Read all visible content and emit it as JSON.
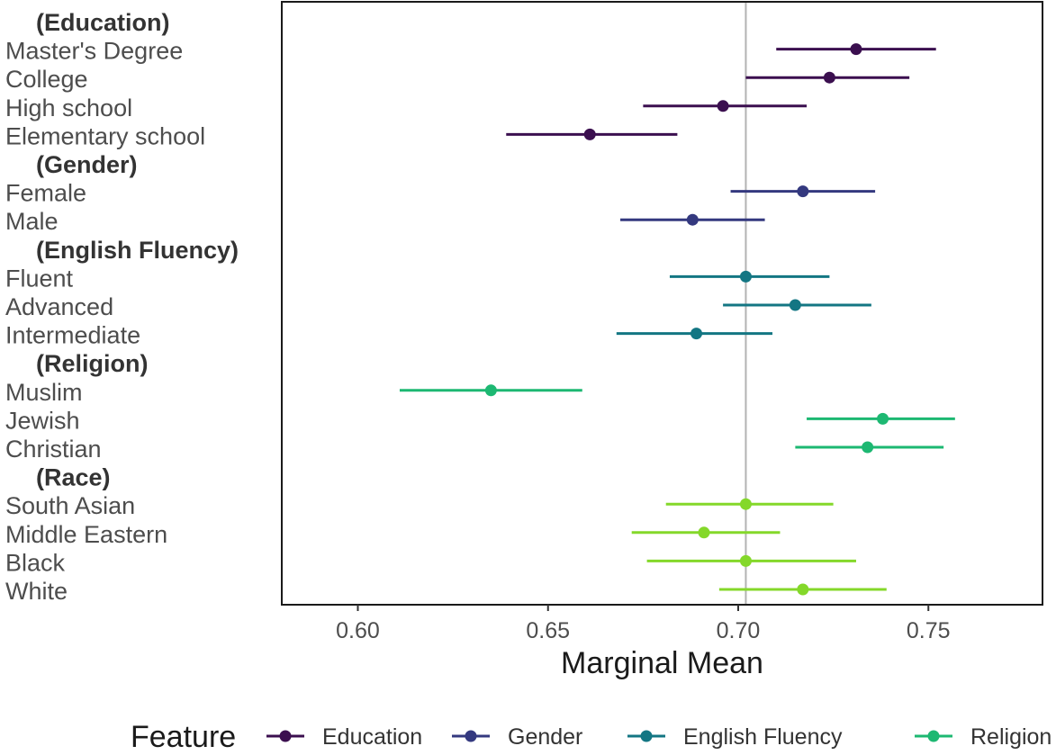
{
  "chart_data": {
    "type": "dot-errorbar",
    "xlabel": "Marginal Mean",
    "ylabel": "",
    "xlim": [
      0.58,
      0.78
    ],
    "xticks": [
      0.6,
      0.65,
      0.7,
      0.75
    ],
    "xtick_labels": [
      "0.60",
      "0.65",
      "0.70",
      "0.75"
    ],
    "reference_line": 0.702,
    "rows": [
      {
        "label": "(Education)",
        "header": true
      },
      {
        "label": "Master's Degree",
        "feature": "Education",
        "mean": 0.731,
        "low": 0.71,
        "high": 0.752
      },
      {
        "label": "College",
        "feature": "Education",
        "mean": 0.724,
        "low": 0.702,
        "high": 0.745
      },
      {
        "label": "High school",
        "feature": "Education",
        "mean": 0.696,
        "low": 0.675,
        "high": 0.718
      },
      {
        "label": "Elementary school",
        "feature": "Education",
        "mean": 0.661,
        "low": 0.639,
        "high": 0.684
      },
      {
        "label": "(Gender)",
        "header": true
      },
      {
        "label": "Female",
        "feature": "Gender",
        "mean": 0.717,
        "low": 0.698,
        "high": 0.736
      },
      {
        "label": "Male",
        "feature": "Gender",
        "mean": 0.688,
        "low": 0.669,
        "high": 0.707
      },
      {
        "label": "(English Fluency)",
        "header": true
      },
      {
        "label": "Fluent",
        "feature": "English Fluency",
        "mean": 0.702,
        "low": 0.682,
        "high": 0.724
      },
      {
        "label": "Advanced",
        "feature": "English Fluency",
        "mean": 0.715,
        "low": 0.696,
        "high": 0.735
      },
      {
        "label": "Intermediate",
        "feature": "English Fluency",
        "mean": 0.689,
        "low": 0.668,
        "high": 0.709
      },
      {
        "label": "(Religion)",
        "header": true
      },
      {
        "label": "Muslim",
        "feature": "Religion",
        "mean": 0.635,
        "low": 0.611,
        "high": 0.659
      },
      {
        "label": "Jewish",
        "feature": "Religion",
        "mean": 0.738,
        "low": 0.718,
        "high": 0.757
      },
      {
        "label": "Christian",
        "feature": "Religion",
        "mean": 0.734,
        "low": 0.715,
        "high": 0.754
      },
      {
        "label": "(Race)",
        "header": true
      },
      {
        "label": "South Asian",
        "feature": "Race",
        "mean": 0.702,
        "low": 0.681,
        "high": 0.725
      },
      {
        "label": "Middle Eastern",
        "feature": "Race",
        "mean": 0.691,
        "low": 0.672,
        "high": 0.711
      },
      {
        "label": "Black",
        "feature": "Race",
        "mean": 0.702,
        "low": 0.676,
        "high": 0.731
      },
      {
        "label": "White",
        "feature": "Race",
        "mean": 0.717,
        "low": 0.695,
        "high": 0.739
      }
    ],
    "legend": {
      "title": "Feature",
      "position": "bottom",
      "entries": [
        {
          "name": "Education",
          "color": "#3b0f4f"
        },
        {
          "name": "Gender",
          "color": "#34397f"
        },
        {
          "name": "English Fluency",
          "color": "#137683"
        },
        {
          "name": "Religion",
          "color": "#1db872"
        }
      ]
    },
    "colors": {
      "Education": "#3b0f4f",
      "Gender": "#34397f",
      "English Fluency": "#137683",
      "Religion": "#1db872",
      "Race": "#84d82a"
    }
  }
}
